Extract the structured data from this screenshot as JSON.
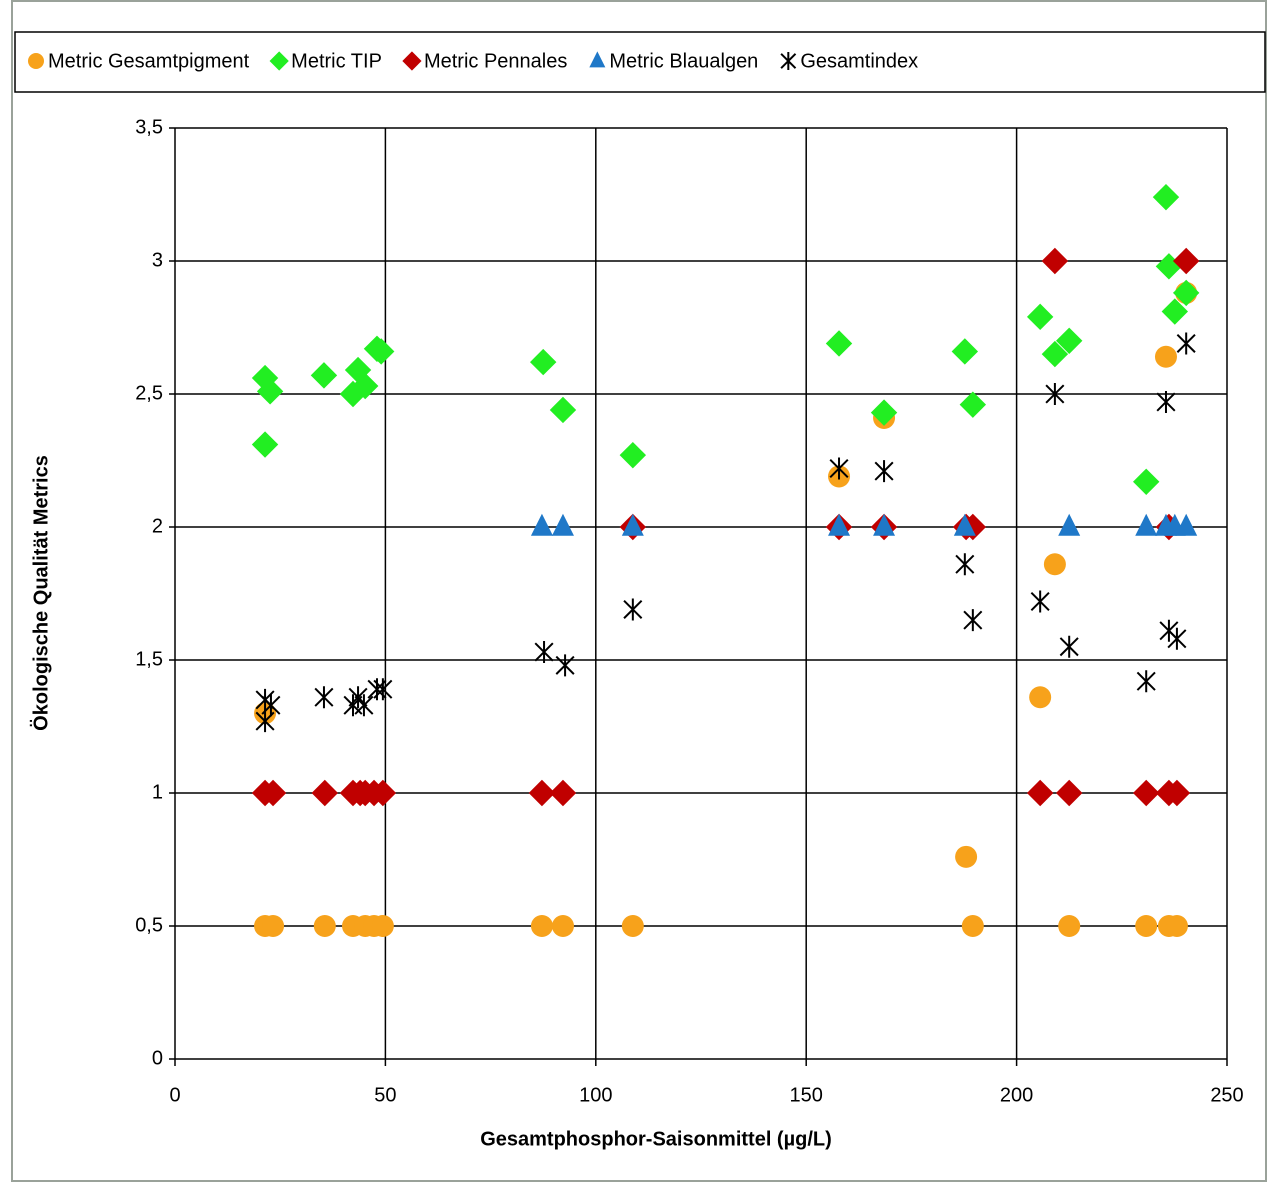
{
  "chart_data": {
    "type": "scatter",
    "x_label": "Gesamtphosphor-Saisonmittel (µg/L)",
    "y_label": "Ökologische Qualität Metrics",
    "xlim": [
      0,
      250
    ],
    "ylim": [
      0,
      3.5
    ],
    "xticks": [
      0,
      50,
      100,
      150,
      200,
      250
    ],
    "yticks": [
      0,
      {
        "value": 0.5,
        "label": "0,5"
      },
      1,
      {
        "value": 1.5,
        "label": "1,5"
      },
      2,
      {
        "value": 2.5,
        "label": "2,5"
      },
      3,
      {
        "value": 3.5,
        "label": "3,5"
      }
    ],
    "grid": true,
    "legend": "top",
    "series": [
      {
        "name": "Metric Gesamtpigment",
        "color": "#f7a21b",
        "marker": "circle",
        "x": [
          21.4,
          23.3,
          35.6,
          42.3,
          45.2,
          47.3,
          49.4,
          87.2,
          92.2,
          108.8,
          157.8,
          168.5,
          188,
          189.6,
          209.1,
          205.6,
          212.5,
          230.8,
          235.5,
          236.2,
          238.1,
          240.3,
          21.4
        ],
        "values": [
          0.5,
          0.5,
          0.5,
          0.5,
          0.5,
          0.5,
          0.5,
          0.5,
          0.5,
          0.5,
          2.19,
          2.41,
          0.76,
          0.5,
          1.86,
          1.36,
          0.5,
          0.5,
          2.64,
          0.5,
          0.5,
          2.88,
          1.3
        ]
      },
      {
        "name": "Metric TIP",
        "color": "#22ee22",
        "marker": "diamond",
        "x": [
          21.4,
          21.4,
          22.6,
          35.4,
          42.3,
          43.5,
          45.2,
          48,
          49,
          87.5,
          92.2,
          108.8,
          157.8,
          168.5,
          187.7,
          189.6,
          205.6,
          209.1,
          212.5,
          230.8,
          235.5,
          236.2,
          237.6,
          240.3
        ],
        "values": [
          2.31,
          2.56,
          2.51,
          2.57,
          2.5,
          2.59,
          2.53,
          2.67,
          2.66,
          2.62,
          2.44,
          2.27,
          2.69,
          2.43,
          2.66,
          2.46,
          2.79,
          2.65,
          2.7,
          2.17,
          3.24,
          2.98,
          2.81,
          2.88
        ]
      },
      {
        "name": "Metric Pennales",
        "color": "#c00000",
        "marker": "diamond",
        "x": [
          21.4,
          23.3,
          35.6,
          42.3,
          44,
          45.2,
          47.3,
          49.4,
          87.2,
          92.2,
          108.8,
          157.8,
          168.5,
          188,
          189.6,
          236.2,
          209.1,
          240.3,
          205.6,
          212.5,
          230.8,
          236.2,
          238.1
        ],
        "values": [
          1,
          1,
          1,
          1,
          1,
          1,
          1,
          1,
          1,
          1,
          2,
          2,
          2,
          2,
          2,
          2,
          3,
          3,
          1,
          1,
          1,
          1,
          1
        ]
      },
      {
        "name": "Metric Blaualgen",
        "color": "#1f78c8",
        "marker": "triangle",
        "x": [
          87.2,
          92.2,
          108.8,
          157.8,
          168.5,
          187.7,
          212.5,
          230.8,
          235.5,
          237.6,
          240.3
        ],
        "values": [
          2,
          2,
          2,
          2,
          2,
          2,
          2,
          2,
          2,
          2,
          2
        ]
      },
      {
        "name": "Gesamtindex",
        "color": "#000000",
        "marker": "star",
        "x": [
          21.4,
          21.4,
          22.8,
          35.4,
          42.3,
          43.5,
          44.9,
          48,
          49.4,
          87.7,
          92.7,
          108.8,
          157.8,
          168.5,
          187.7,
          189.6,
          205.6,
          209.1,
          212.5,
          230.8,
          235.5,
          236.2,
          238.1,
          240.3
        ],
        "values": [
          1.27,
          1.35,
          1.33,
          1.36,
          1.33,
          1.36,
          1.33,
          1.39,
          1.39,
          1.53,
          1.48,
          1.69,
          2.22,
          2.21,
          1.86,
          1.65,
          1.72,
          2.5,
          1.55,
          1.42,
          2.47,
          1.61,
          1.58,
          2.69
        ]
      }
    ]
  }
}
